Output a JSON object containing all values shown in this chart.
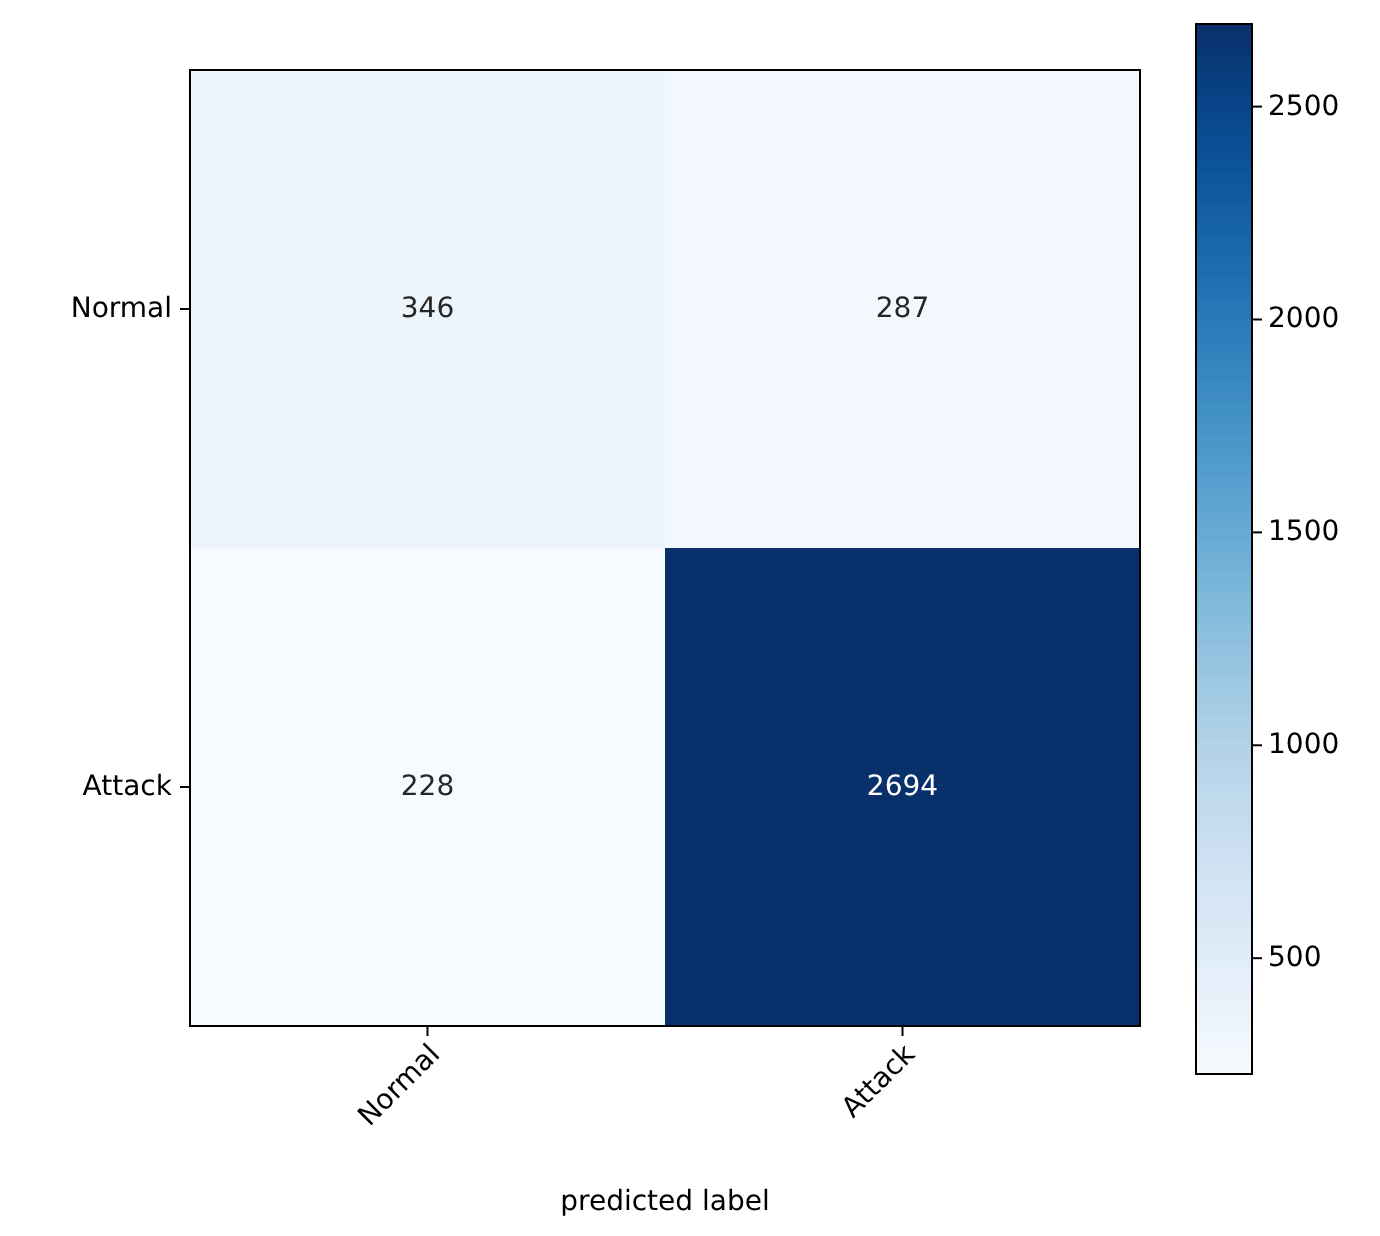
{
  "chart_data": {
    "type": "heatmap",
    "xlabel": "predicted label",
    "categories": [
      "Normal",
      "Attack"
    ],
    "y_categories": [
      "Normal",
      "Attack"
    ],
    "cells": [
      [
        346,
        287
      ],
      [
        228,
        2694
      ]
    ],
    "clim": [
      228,
      2694
    ],
    "cticks": [
      500,
      1000,
      1500,
      2000,
      2500
    ],
    "data_labels": true
  }
}
